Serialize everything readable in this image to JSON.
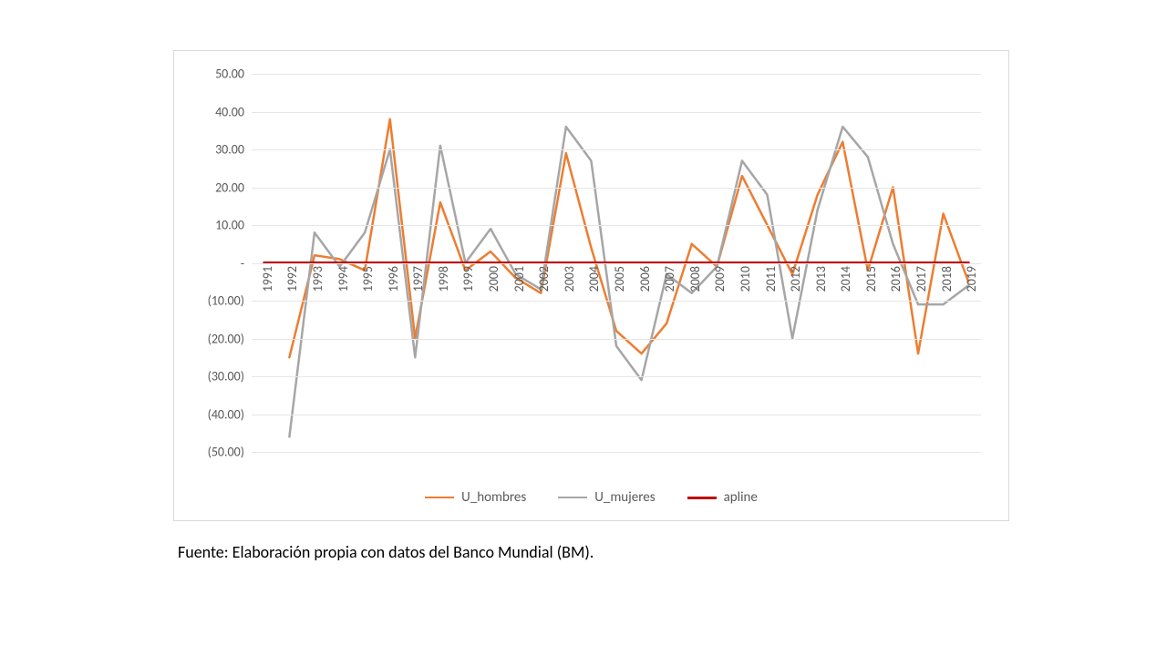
{
  "chart": {
    "type": "line",
    "background_color": "#ffffff",
    "grid_color": "#e6e6e6",
    "axis_font_color": "#595959",
    "axis_fontsize": 14,
    "legend_fontsize": 15,
    "y_axis": {
      "min": -50,
      "max": 50,
      "tick_step": 10,
      "tick_labels": [
        "(50.00)",
        "(40.00)",
        "(30.00)",
        "(20.00)",
        "(10.00)",
        "-",
        "10.00",
        "20.00",
        "30.00",
        "40.00",
        "50.00"
      ]
    },
    "x_axis": {
      "labels": [
        "1991",
        "1992",
        "1993",
        "1994",
        "1995",
        "1996",
        "1997",
        "1998",
        "1999",
        "2000",
        "2001",
        "2002",
        "2003",
        "2004",
        "2005",
        "2006",
        "2007",
        "2008",
        "2009",
        "2010",
        "2011",
        "2012",
        "2013",
        "2014",
        "2015",
        "2016",
        "2017",
        "2018",
        "2019"
      ],
      "rotation_deg": -90
    },
    "series": [
      {
        "name": "U_hombres",
        "color": "#ed7d31",
        "line_width": 2.5,
        "values": [
          null,
          -25,
          2,
          1,
          -2,
          38,
          -20,
          16,
          -2,
          3,
          -4,
          -8,
          29,
          4,
          -18,
          -24,
          -16,
          5,
          -1,
          23,
          10,
          -3,
          18,
          32,
          -2,
          20,
          -24,
          13,
          -5
        ]
      },
      {
        "name": "U_mujeres",
        "color": "#a6a6a6",
        "line_width": 2.5,
        "values": [
          null,
          -46,
          8,
          -1,
          8,
          30,
          -25,
          31,
          0,
          9,
          -3,
          -7,
          36,
          27,
          -22,
          -31,
          -3,
          -8,
          -1,
          27,
          18,
          -20,
          14,
          36,
          28,
          5,
          -11,
          -11,
          -6
        ]
      },
      {
        "name": "apline",
        "color": "#c00000",
        "line_width": 3,
        "values": [
          0,
          0,
          0,
          0,
          0,
          0,
          0,
          0,
          0,
          0,
          0,
          0,
          0,
          0,
          0,
          0,
          0,
          0,
          0,
          0,
          0,
          0,
          0,
          0,
          0,
          0,
          0,
          0,
          0
        ]
      }
    ]
  },
  "caption": "Fuente: Elaboración propia con datos del Banco Mundial (BM).",
  "caption_fontsize": 18,
  "caption_color": "#000000"
}
